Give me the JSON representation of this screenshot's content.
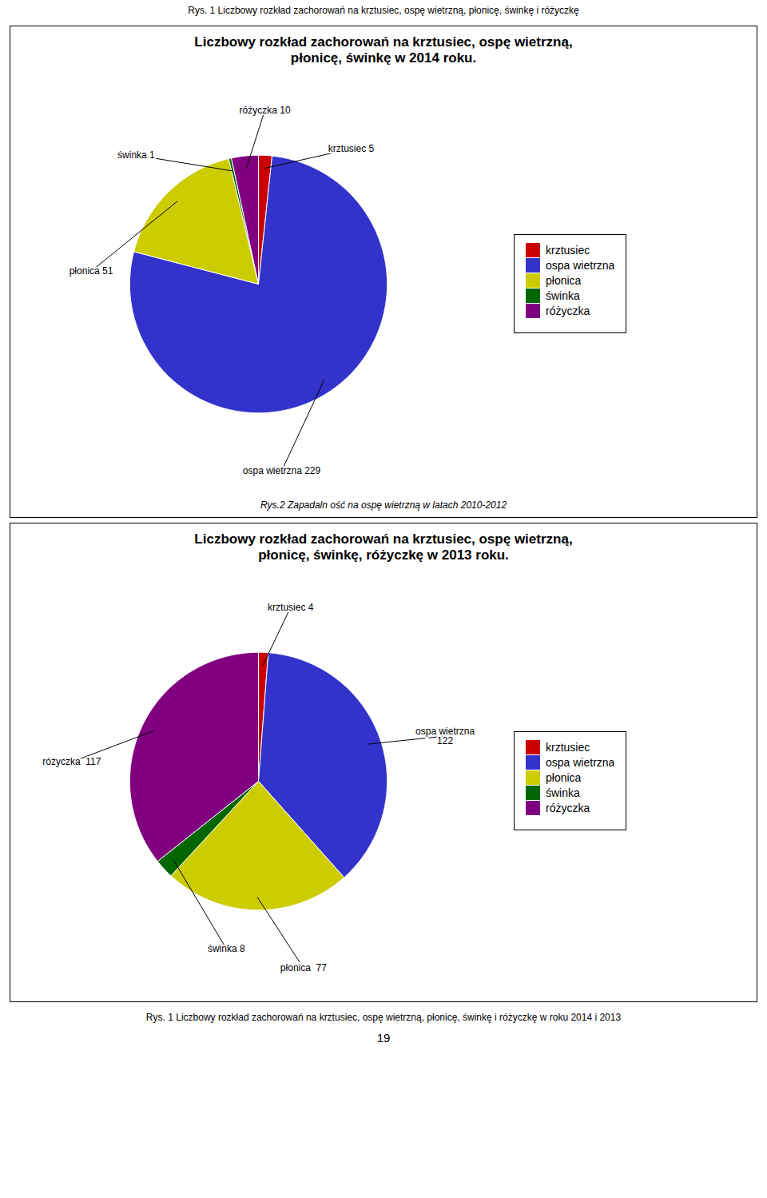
{
  "annotations": [
    "Rys. 1 Liczbowy rozkład zachorowań na krztusiec, ospę wietrzną, płonicę, świnkę i różyczkę",
    "Rys. 1 Liczbowy rozkład zachorowań na krztusiec, ospę wietrzną, płonicę, świnkę i różyczkę w roku 2014 i 2013",
    "19"
  ],
  "chart_data": [
    {
      "type": "pie",
      "title": "Liczbowy rozkład zachorowań na krztusiec, ospę wietrzną,\npłonicę, świnkę w 2014 roku.",
      "caption": "Rys.2 Zapadaln ość na ospę wietrzną w latach 2010-2012",
      "categories": [
        "krztusiec",
        "ospa wietrzna",
        "płonica",
        "świnka",
        "różyczka"
      ],
      "values": [
        5,
        229,
        51,
        1,
        10
      ],
      "value_labels": [
        "krztusiec 5",
        "ospa wietrzna 229",
        "płonica 51",
        "świnka 1",
        "różyczka 10"
      ],
      "colors": [
        "#CC0000",
        "#3333CC",
        "#CCCC00",
        "#006600",
        "#800080"
      ],
      "data_labels": true,
      "legend": "right"
    },
    {
      "type": "pie",
      "title": "Liczbowy rozkład zachorowań na krztusiec, ospę wietrzną,\npłonicę, świnkę, różyczkę w 2013 roku.",
      "categories": [
        "krztusiec",
        "ospa wietrzna",
        "płonica",
        "świnka",
        "różyczka"
      ],
      "values": [
        4,
        122,
        77,
        8,
        117
      ],
      "value_labels": [
        "krztusiec 4",
        "ospa wietrzna\n122",
        "płonica  77",
        "świnka 8",
        "różyczka  117"
      ],
      "colors": [
        "#CC0000",
        "#3333CC",
        "#CCCC00",
        "#006600",
        "#800080"
      ],
      "data_labels": true,
      "legend": "right"
    }
  ]
}
